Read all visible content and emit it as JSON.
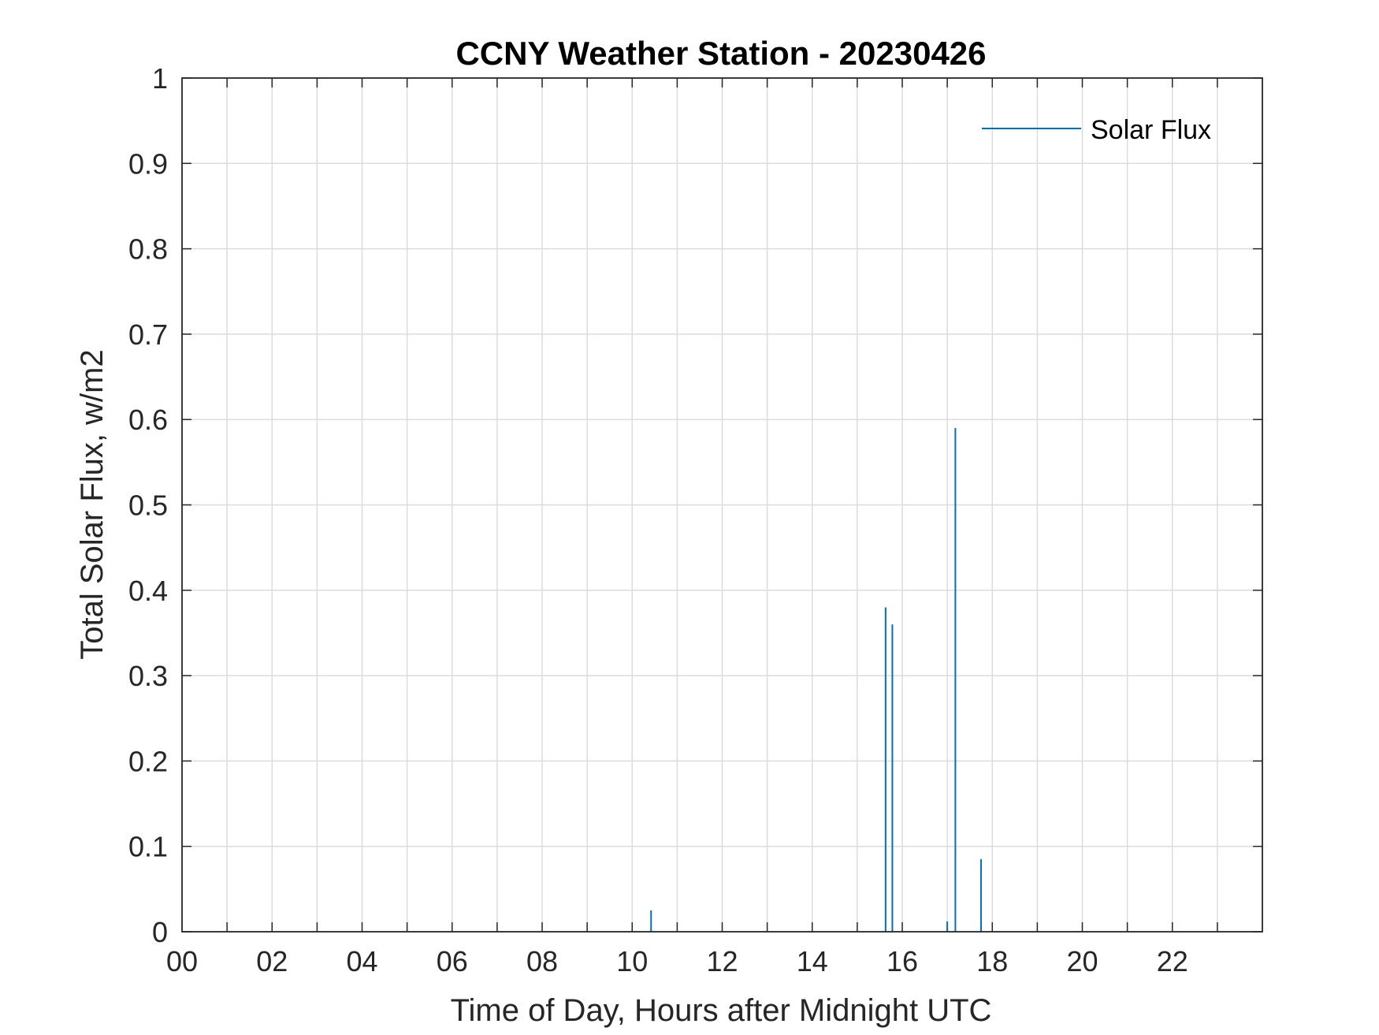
{
  "chart_data": {
    "type": "line",
    "title": "CCNY Weather Station - 20230426",
    "xlabel": "Time of Day, Hours after Midnight UTC",
    "ylabel": "Total Solar Flux, w/m2",
    "xlim": [
      0,
      24
    ],
    "ylim": [
      0,
      1
    ],
    "x_tick_values": [
      0,
      2,
      4,
      6,
      8,
      10,
      12,
      14,
      16,
      18,
      20,
      22
    ],
    "x_tick_labels": [
      "00",
      "02",
      "04",
      "06",
      "08",
      "10",
      "12",
      "14",
      "16",
      "18",
      "20",
      "22"
    ],
    "x_minor_step": 1,
    "y_tick_values": [
      0,
      0.1,
      0.2,
      0.3,
      0.4,
      0.5,
      0.6,
      0.7,
      0.8,
      0.9,
      1
    ],
    "y_tick_labels": [
      "0",
      "0.1",
      "0.2",
      "0.3",
      "0.4",
      "0.5",
      "0.6",
      "0.7",
      "0.8",
      "0.9",
      "1"
    ],
    "grid": true,
    "legend_position": "top-right",
    "series": [
      {
        "name": "Solar Flux",
        "color": "#0072bd",
        "spikes": [
          {
            "x": 10.42,
            "y": 0.025
          },
          {
            "x": 15.63,
            "y": 0.38
          },
          {
            "x": 15.78,
            "y": 0.36
          },
          {
            "x": 17.0,
            "y": 0.012
          },
          {
            "x": 17.18,
            "y": 0.59
          },
          {
            "x": 17.75,
            "y": 0.085
          }
        ]
      }
    ]
  }
}
